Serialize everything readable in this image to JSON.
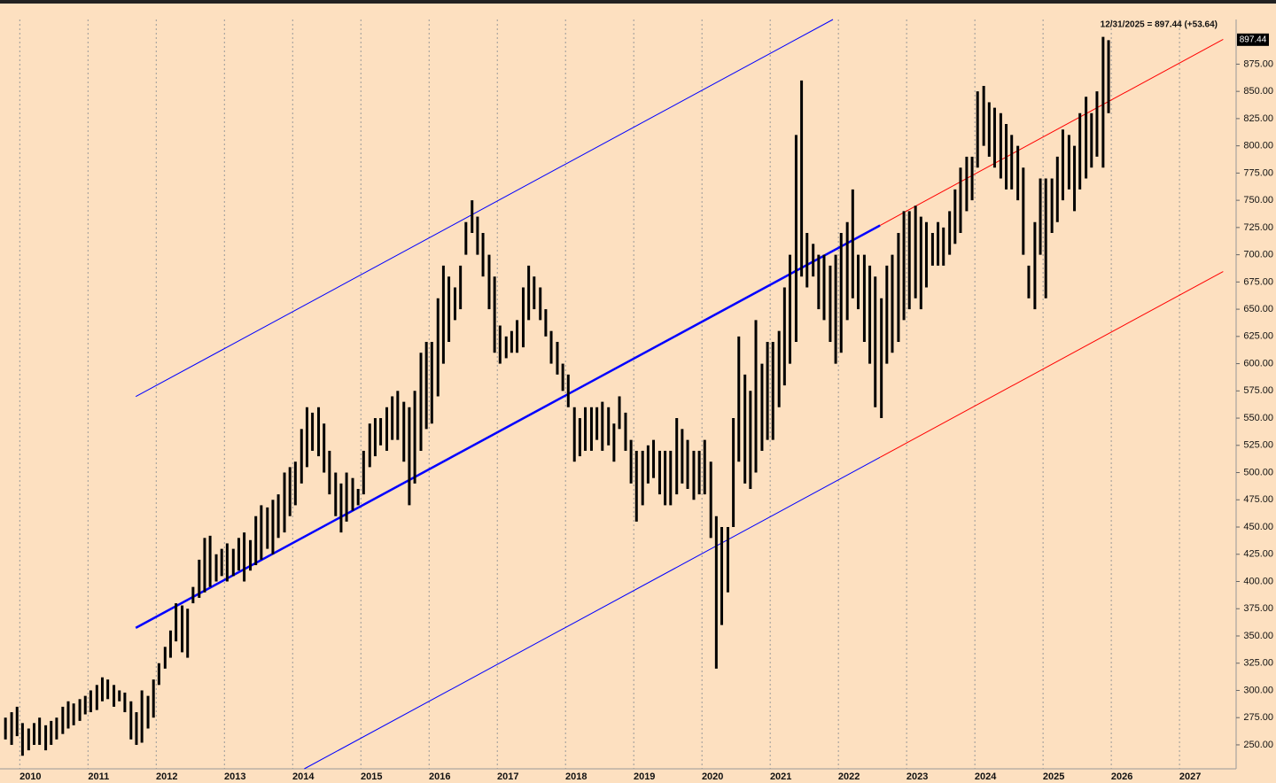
{
  "chart_data": {
    "type": "range-bar",
    "annotation": "12/31/2025 = 897.44 (+53.64)",
    "last_value": 897.44,
    "background": "#fde0c0",
    "bar_color": "#000000",
    "xlim": [
      2009.71,
      2027.83
    ],
    "xticks": [
      2010,
      2011,
      2012,
      2013,
      2014,
      2015,
      2016,
      2017,
      2018,
      2019,
      2020,
      2021,
      2022,
      2023,
      2024,
      2025,
      2026,
      2027
    ],
    "ylim": [
      228,
      916
    ],
    "yticks": [
      {
        "value": 250,
        "label": "250.00"
      },
      {
        "value": 275,
        "label": "275.00"
      },
      {
        "value": 300,
        "label": "300.00"
      },
      {
        "value": 325,
        "label": "325.00"
      },
      {
        "value": 350,
        "label": "350.00"
      },
      {
        "value": 375,
        "label": "375.00"
      },
      {
        "value": 400,
        "label": "400.00"
      },
      {
        "value": 425,
        "label": "425.00"
      },
      {
        "value": 450,
        "label": "450.00"
      },
      {
        "value": 475,
        "label": "475.00"
      },
      {
        "value": 500,
        "label": "500.00"
      },
      {
        "value": 525,
        "label": "525.00"
      },
      {
        "value": 550,
        "label": "550.00"
      },
      {
        "value": 575,
        "label": "575.00"
      },
      {
        "value": 600,
        "label": "600.00"
      },
      {
        "value": 625,
        "label": "625.00"
      },
      {
        "value": 650,
        "label": "650.00"
      },
      {
        "value": 675,
        "label": "675.00"
      },
      {
        "value": 700,
        "label": "700.00"
      },
      {
        "value": 725,
        "label": "725.00"
      },
      {
        "value": 750,
        "label": "750.00"
      },
      {
        "value": 775,
        "label": "775.00"
      },
      {
        "value": 800,
        "label": "800.00"
      },
      {
        "value": 825,
        "label": "825.00"
      },
      {
        "value": 850,
        "label": "850.00"
      },
      {
        "value": 875,
        "label": "875.00"
      }
    ],
    "grid": true,
    "x": [
      2009.79,
      2009.88,
      2009.96,
      2010.04,
      2010.13,
      2010.21,
      2010.29,
      2010.38,
      2010.46,
      2010.54,
      2010.63,
      2010.71,
      2010.79,
      2010.88,
      2010.96,
      2011.04,
      2011.13,
      2011.21,
      2011.29,
      2011.38,
      2011.46,
      2011.54,
      2011.63,
      2011.71,
      2011.79,
      2011.88,
      2011.96,
      2012.04,
      2012.13,
      2012.21,
      2012.29,
      2012.38,
      2012.46,
      2012.54,
      2012.63,
      2012.71,
      2012.79,
      2012.88,
      2012.96,
      2013.04,
      2013.13,
      2013.21,
      2013.29,
      2013.38,
      2013.46,
      2013.54,
      2013.63,
      2013.71,
      2013.79,
      2013.88,
      2013.96,
      2014.04,
      2014.13,
      2014.21,
      2014.29,
      2014.38,
      2014.46,
      2014.54,
      2014.63,
      2014.71,
      2014.79,
      2014.88,
      2014.96,
      2015.04,
      2015.13,
      2015.21,
      2015.29,
      2015.38,
      2015.46,
      2015.54,
      2015.63,
      2015.71,
      2015.79,
      2015.88,
      2015.96,
      2016.04,
      2016.13,
      2016.21,
      2016.29,
      2016.38,
      2016.46,
      2016.54,
      2016.63,
      2016.71,
      2016.79,
      2016.88,
      2016.96,
      2017.04,
      2017.13,
      2017.21,
      2017.29,
      2017.38,
      2017.46,
      2017.54,
      2017.63,
      2017.71,
      2017.79,
      2017.88,
      2017.96,
      2018.04,
      2018.13,
      2018.21,
      2018.29,
      2018.38,
      2018.46,
      2018.54,
      2018.63,
      2018.71,
      2018.79,
      2018.88,
      2018.96,
      2019.04,
      2019.13,
      2019.21,
      2019.29,
      2019.38,
      2019.46,
      2019.54,
      2019.63,
      2019.71,
      2019.79,
      2019.88,
      2019.96,
      2020.04,
      2020.13,
      2020.21,
      2020.29,
      2020.38,
      2020.46,
      2020.54,
      2020.63,
      2020.71,
      2020.79,
      2020.88,
      2020.96,
      2021.04,
      2021.13,
      2021.21,
      2021.29,
      2021.38,
      2021.46,
      2021.54,
      2021.63,
      2021.71,
      2021.79,
      2021.88,
      2021.96,
      2022.04,
      2022.13,
      2022.21,
      2022.29,
      2022.38,
      2022.46,
      2022.54,
      2022.63,
      2022.71,
      2022.79,
      2022.88,
      2022.96,
      2023.04,
      2023.13,
      2023.21,
      2023.29,
      2023.38,
      2023.46,
      2023.54,
      2023.63,
      2023.71,
      2023.79,
      2023.88,
      2023.96,
      2024.04,
      2024.13,
      2024.21,
      2024.29,
      2024.38,
      2024.46,
      2024.54,
      2024.63,
      2024.71,
      2024.79,
      2024.88,
      2024.96,
      2025.04,
      2025.13,
      2025.21,
      2025.29,
      2025.38,
      2025.46,
      2025.54,
      2025.63,
      2025.71,
      2025.79,
      2025.88,
      2025.96
    ],
    "low": [
      255,
      250,
      258,
      240,
      245,
      250,
      250,
      245,
      250,
      255,
      260,
      265,
      268,
      272,
      278,
      280,
      282,
      290,
      292,
      285,
      290,
      280,
      255,
      250,
      252,
      265,
      275,
      305,
      320,
      330,
      345,
      335,
      330,
      380,
      385,
      390,
      395,
      400,
      405,
      400,
      405,
      410,
      400,
      410,
      415,
      420,
      430,
      425,
      440,
      445,
      460,
      470,
      490,
      505,
      520,
      515,
      500,
      480,
      460,
      445,
      455,
      465,
      470,
      480,
      505,
      515,
      525,
      520,
      530,
      530,
      510,
      470,
      490,
      520,
      540,
      545,
      570,
      600,
      620,
      640,
      650,
      700,
      720,
      700,
      680,
      650,
      610,
      600,
      605,
      610,
      610,
      615,
      640,
      650,
      640,
      625,
      600,
      590,
      575,
      560,
      510,
      515,
      520,
      520,
      530,
      520,
      525,
      510,
      540,
      520,
      490,
      455,
      470,
      490,
      495,
      480,
      470,
      470,
      480,
      490,
      485,
      475,
      480,
      480,
      440,
      320,
      360,
      390,
      450,
      510,
      490,
      485,
      500,
      520,
      530,
      530,
      560,
      580,
      600,
      620,
      680,
      670,
      680,
      650,
      640,
      620,
      600,
      610,
      640,
      660,
      650,
      620,
      600,
      560,
      550,
      600,
      610,
      620,
      640,
      650,
      660,
      650,
      670,
      690,
      690,
      690,
      700,
      710,
      720,
      740,
      750,
      780,
      800,
      790,
      780,
      770,
      760,
      760,
      750,
      700,
      660,
      650,
      700,
      660,
      720,
      730,
      750,
      760,
      740,
      760,
      770,
      780,
      790,
      780,
      830
    ],
    "high": [
      275,
      280,
      285,
      270,
      265,
      270,
      275,
      268,
      272,
      275,
      285,
      290,
      288,
      292,
      295,
      300,
      305,
      312,
      310,
      305,
      300,
      298,
      290,
      280,
      300,
      295,
      310,
      325,
      340,
      355,
      380,
      378,
      375,
      395,
      420,
      440,
      442,
      425,
      430,
      435,
      430,
      440,
      445,
      438,
      460,
      470,
      468,
      475,
      480,
      500,
      505,
      510,
      540,
      560,
      555,
      560,
      545,
      520,
      500,
      490,
      500,
      495,
      485,
      520,
      545,
      550,
      550,
      560,
      570,
      575,
      565,
      560,
      575,
      610,
      620,
      620,
      660,
      690,
      680,
      670,
      690,
      730,
      750,
      735,
      720,
      700,
      680,
      635,
      625,
      630,
      640,
      670,
      690,
      680,
      670,
      650,
      630,
      620,
      600,
      590,
      560,
      550,
      560,
      560,
      560,
      565,
      560,
      545,
      570,
      555,
      530,
      520,
      520,
      525,
      530,
      520,
      520,
      520,
      550,
      540,
      530,
      520,
      520,
      530,
      510,
      460,
      450,
      450,
      550,
      625,
      590,
      575,
      640,
      600,
      620,
      620,
      630,
      670,
      700,
      810,
      860,
      720,
      710,
      700,
      700,
      690,
      700,
      720,
      730,
      760,
      700,
      700,
      690,
      680,
      660,
      690,
      700,
      720,
      740,
      740,
      745,
      735,
      730,
      720,
      730,
      725,
      740,
      760,
      780,
      790,
      790,
      850,
      855,
      840,
      835,
      830,
      820,
      810,
      800,
      780,
      690,
      730,
      770,
      770,
      770,
      790,
      815,
      810,
      800,
      830,
      845,
      830,
      850,
      900,
      897
    ],
    "trend_lines": [
      {
        "color": "#0000ff",
        "width": 2.5,
        "x": [
          2011.7,
          2022.61
        ],
        "y": [
          357.4,
          726.9
        ]
      },
      {
        "color": "#0000ff",
        "width": 1,
        "x": [
          2011.7,
          2021.92
        ],
        "y": [
          569.8,
          916
        ]
      },
      {
        "color": "#0000ff",
        "width": 1,
        "x": [
          2014.17,
          2022.61
        ],
        "y": [
          228,
          514
        ]
      },
      {
        "color": "#ff0000",
        "width": 1,
        "x": [
          2022.61,
          2027.64
        ],
        "y": [
          726.9,
          897.8
        ]
      },
      {
        "color": "#ff0000",
        "width": 1,
        "x": [
          2022.61,
          2027.64
        ],
        "y": [
          514,
          684.6
        ]
      }
    ]
  }
}
